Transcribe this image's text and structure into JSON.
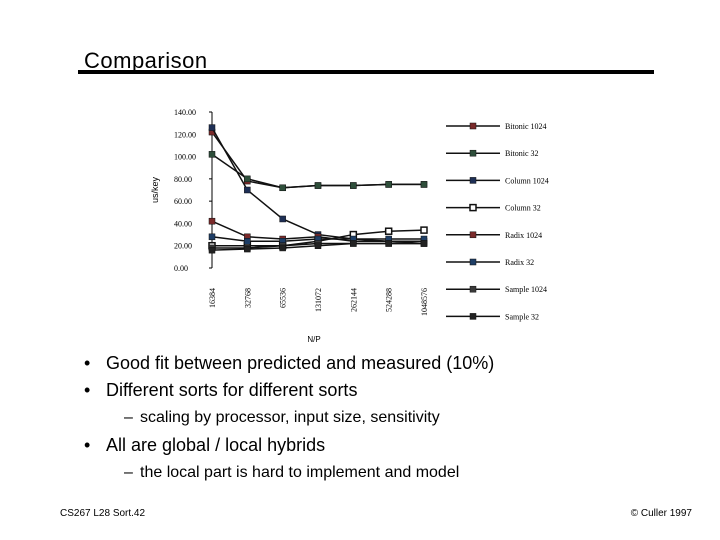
{
  "slide": {
    "title": "Comparison",
    "bullets": [
      {
        "level": 1,
        "text": "Good fit between predicted and measured (10%)"
      },
      {
        "level": 1,
        "text": "Different sorts for different sorts"
      },
      {
        "level": 2,
        "text": "scaling by processor, input size, sensitivity"
      },
      {
        "level": 1,
        "text": "All are global / local hybrids"
      },
      {
        "level": 2,
        "text": "the local part is hard to implement and model"
      }
    ],
    "footer_left": "CS267 L28 Sort.42",
    "footer_right": "© Culler 1997"
  },
  "chart_data": {
    "type": "line",
    "xlabel": "N/P",
    "ylabel": "us/key",
    "categories": [
      "16384",
      "32768",
      "65536",
      "131072",
      "262144",
      "524288",
      "1048576"
    ],
    "ylim": [
      0,
      140
    ],
    "yticks": [
      "0.00",
      "20.00",
      "40.00",
      "60.00",
      "80.00",
      "100.00",
      "120.00",
      "140.00"
    ],
    "legend_position": "right",
    "series": [
      {
        "name": "Bitonic 1024",
        "values": [
          122,
          78,
          72,
          74,
          74,
          75,
          75
        ],
        "color": "#7a2a2a",
        "marker": "filled"
      },
      {
        "name": "Bitonic 32",
        "values": [
          102,
          80,
          72,
          74,
          74,
          75,
          75
        ],
        "color": "#2e4e3a",
        "marker": "filled"
      },
      {
        "name": "Column 1024",
        "values": [
          126,
          70,
          44,
          30,
          26,
          24,
          22
        ],
        "color": "#1e2f55",
        "marker": "filled"
      },
      {
        "name": "Column 32",
        "values": [
          20,
          20,
          20,
          24,
          30,
          33,
          34
        ],
        "color": "#555555",
        "marker": "hollow"
      },
      {
        "name": "Radix 1024",
        "values": [
          42,
          28,
          26,
          28,
          24,
          24,
          24
        ],
        "color": "#7a2a2a",
        "marker": "filled"
      },
      {
        "name": "Radix 32",
        "values": [
          28,
          24,
          24,
          26,
          26,
          26,
          26
        ],
        "color": "#1e3e66",
        "marker": "filled"
      },
      {
        "name": "Sample 1024",
        "values": [
          18,
          18,
          20,
          22,
          22,
          22,
          22
        ],
        "color": "#3a3a3a",
        "marker": "filled"
      },
      {
        "name": "Sample 32",
        "values": [
          16,
          17,
          18,
          20,
          22,
          22,
          22
        ],
        "color": "#222222",
        "marker": "filled"
      }
    ]
  }
}
